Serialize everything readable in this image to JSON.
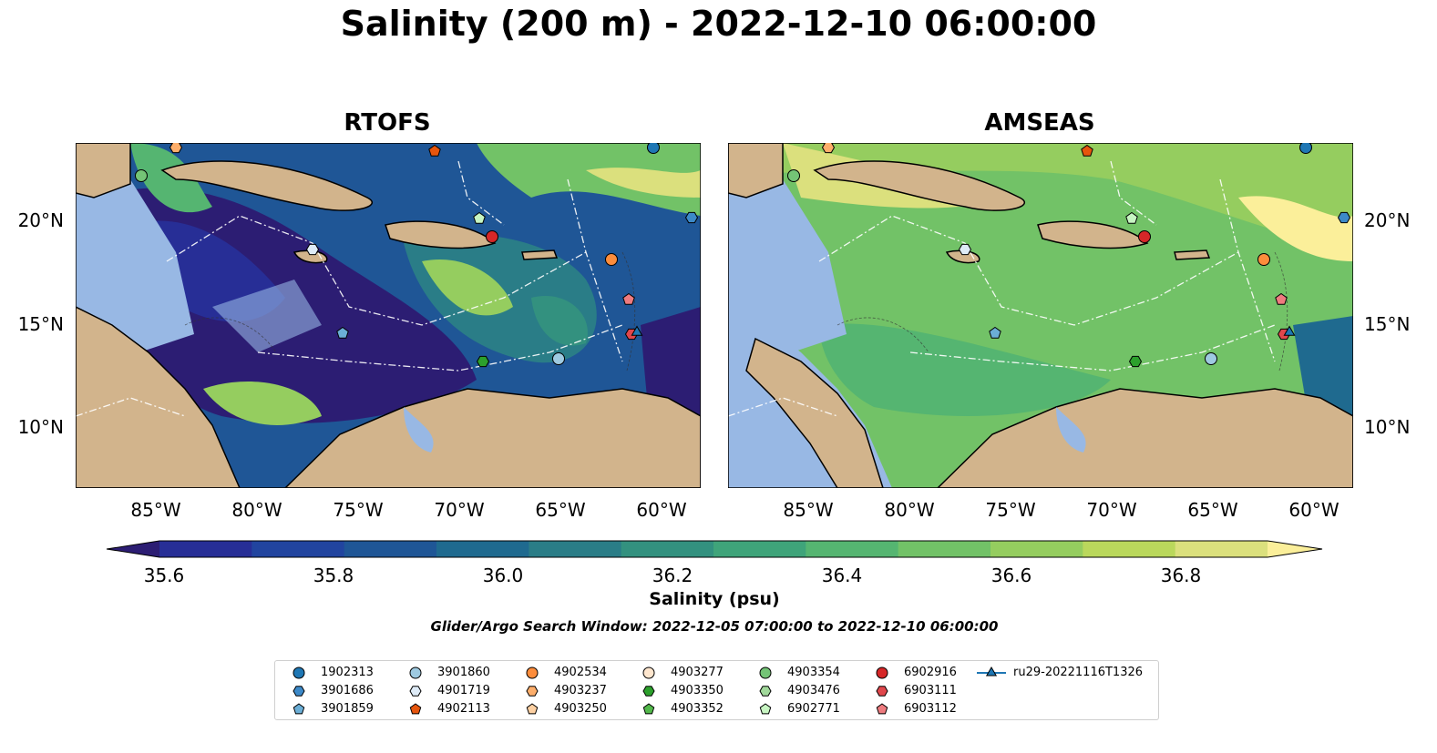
{
  "title": "Salinity (200 m) - 2022-12-10 06:00:00",
  "panels": [
    {
      "title": "RTOFS"
    },
    {
      "title": "AMSEAS"
    }
  ],
  "lat_labels": [
    "20°N",
    "15°N",
    "10°N"
  ],
  "lon_labels": [
    "85°W",
    "80°W",
    "75°W",
    "70°W",
    "65°W",
    "60°W"
  ],
  "colorbar": {
    "label": "Salinity (psu)",
    "ticks": [
      "35.6",
      "35.8",
      "36.0",
      "36.2",
      "36.4",
      "36.6",
      "36.8"
    ],
    "range": [
      35.6,
      36.9
    ],
    "colors": [
      "#2c1d73",
      "#272e96",
      "#21449f",
      "#1f5696",
      "#1f6a8f",
      "#2a7d87",
      "#33917f",
      "#3fa47a",
      "#55b571",
      "#72c267",
      "#95cd5f",
      "#bad85c",
      "#dbe07d",
      "#fbef9a"
    ]
  },
  "search_window": "Glider/Argo Search Window: 2022-12-05 07:00:00 to 2022-12-10 06:00:00",
  "legend": [
    {
      "label": "1902313",
      "marker": "circle",
      "color": "#1f77b4"
    },
    {
      "label": "3901686",
      "marker": "hexagon",
      "color": "#3c89c8"
    },
    {
      "label": "3901859",
      "marker": "pentagon",
      "color": "#6baed6"
    },
    {
      "label": "3901860",
      "marker": "circle",
      "color": "#9ecae1"
    },
    {
      "label": "4901719",
      "marker": "hexagon",
      "color": "#deebf7"
    },
    {
      "label": "4902113",
      "marker": "pentagon",
      "color": "#e6550d"
    },
    {
      "label": "4902534",
      "marker": "circle",
      "color": "#fd8d3c"
    },
    {
      "label": "4903237",
      "marker": "hexagon",
      "color": "#fdae6b"
    },
    {
      "label": "4903250",
      "marker": "pentagon",
      "color": "#fdd0a2"
    },
    {
      "label": "4903277",
      "marker": "circle",
      "color": "#fee6ce"
    },
    {
      "label": "4903350",
      "marker": "hexagon",
      "color": "#2ca02c"
    },
    {
      "label": "4903352",
      "marker": "pentagon",
      "color": "#52b84a"
    },
    {
      "label": "4903354",
      "marker": "circle",
      "color": "#74c476"
    },
    {
      "label": "4903476",
      "marker": "hexagon",
      "color": "#a1d99b"
    },
    {
      "label": "6902771",
      "marker": "pentagon",
      "color": "#c7f5c2"
    },
    {
      "label": "6902916",
      "marker": "circle",
      "color": "#d62728"
    },
    {
      "label": "6903111",
      "marker": "hexagon",
      "color": "#e0474c"
    },
    {
      "label": "6903112",
      "marker": "pentagon",
      "color": "#ee7b7f"
    },
    {
      "label": "ru29-20221116T1326",
      "marker": "triangle",
      "color": "#1f77b4"
    }
  ],
  "colors": {
    "land": "#d2b48c",
    "shallow_water": "#98b8e4",
    "coast": "#000000"
  }
}
